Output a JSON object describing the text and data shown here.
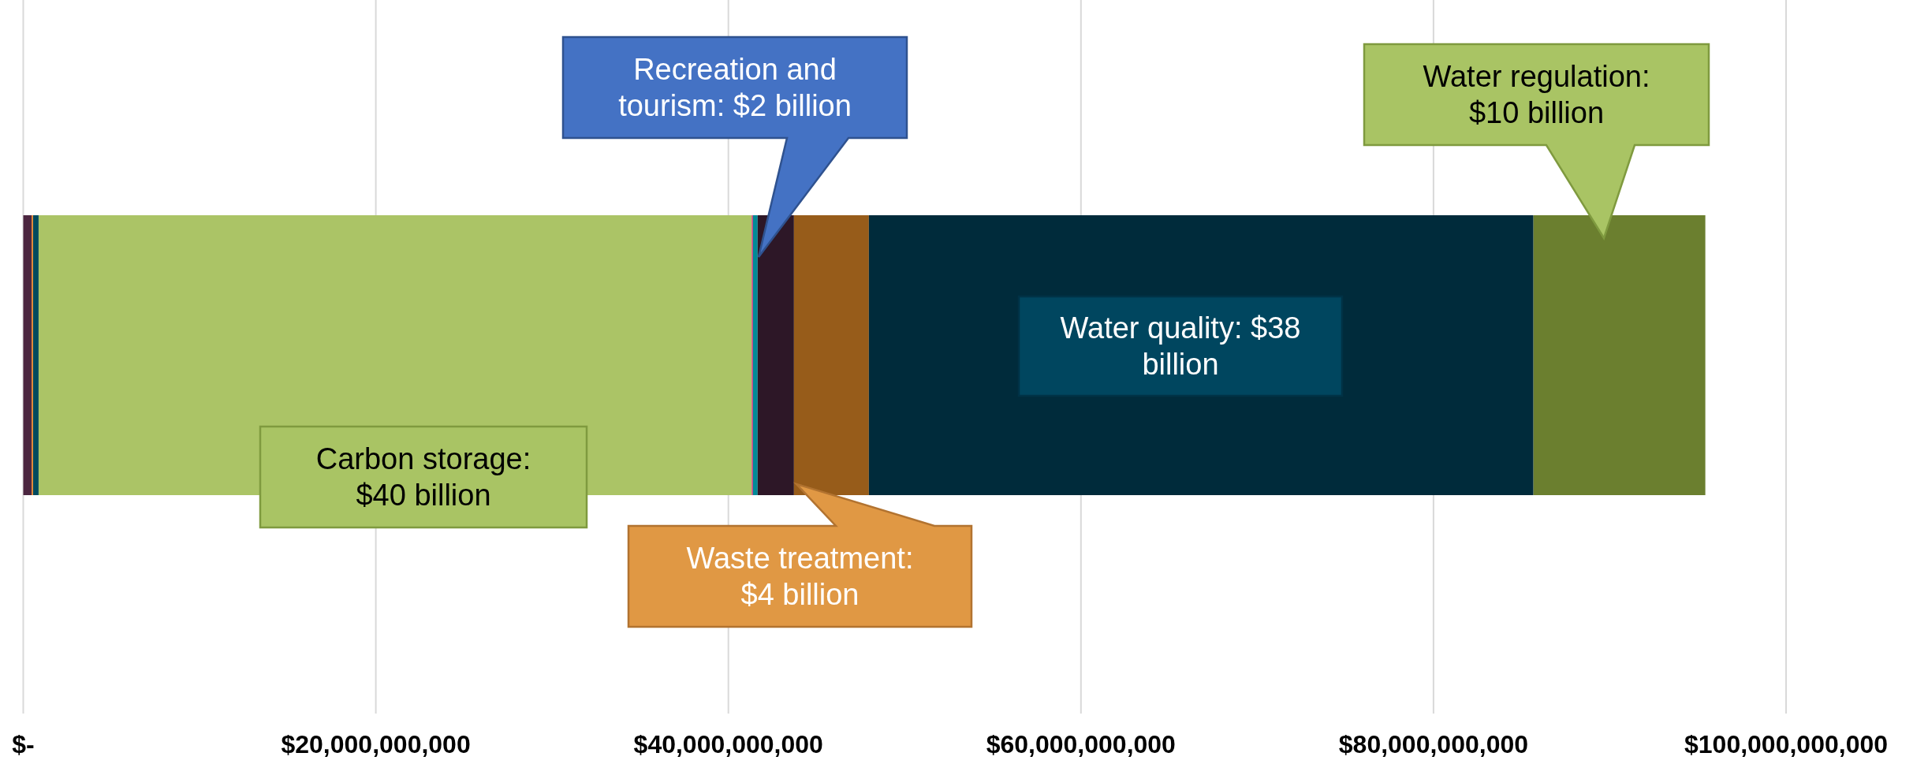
{
  "chart_data": {
    "type": "bar",
    "orientation": "horizontal",
    "stacked": true,
    "categories": [
      null
    ],
    "series": [
      {
        "color": "#4c2640",
        "values": [
          470000000
        ]
      },
      {
        "color": "#e0893a",
        "values": [
          90000000
        ]
      },
      {
        "color": "#004a5e",
        "values": [
          310000000
        ]
      },
      {
        "color": "#abc466",
        "values": [
          40460000000
        ]
      },
      {
        "color": "#e0106e",
        "values": [
          60000000
        ]
      },
      {
        "color": "#008a96",
        "values": [
          270000000
        ]
      },
      {
        "color": "#2d1727",
        "values": [
          2060000000
        ]
      },
      {
        "color": "#975c1a",
        "values": [
          4250000000
        ]
      },
      {
        "color": "#002b3b",
        "values": [
          37700000000
        ]
      },
      {
        "color": "#6b7f2f",
        "values": [
          9750000000
        ]
      }
    ],
    "xlim": [
      0,
      100000000000
    ],
    "xticks": [
      {
        "value": 0,
        "label": "$-"
      },
      {
        "value": 20000000000,
        "label": "$20,000,000,000"
      },
      {
        "value": 40000000000,
        "label": "$40,000,000,000"
      },
      {
        "value": 60000000000,
        "label": "$60,000,000,000"
      },
      {
        "value": 80000000000,
        "label": "$80,000,000,000"
      },
      {
        "value": 100000000000,
        "label": "$100,000,000,000"
      }
    ],
    "grid": "x",
    "annotations": [
      "Recreation and tourism: $2 billion",
      "Water regulation: $10 billion",
      "Carbon storage: $40 billion",
      "Waste treatment: $4 billion",
      "Water quality: $38 billion"
    ]
  }
}
